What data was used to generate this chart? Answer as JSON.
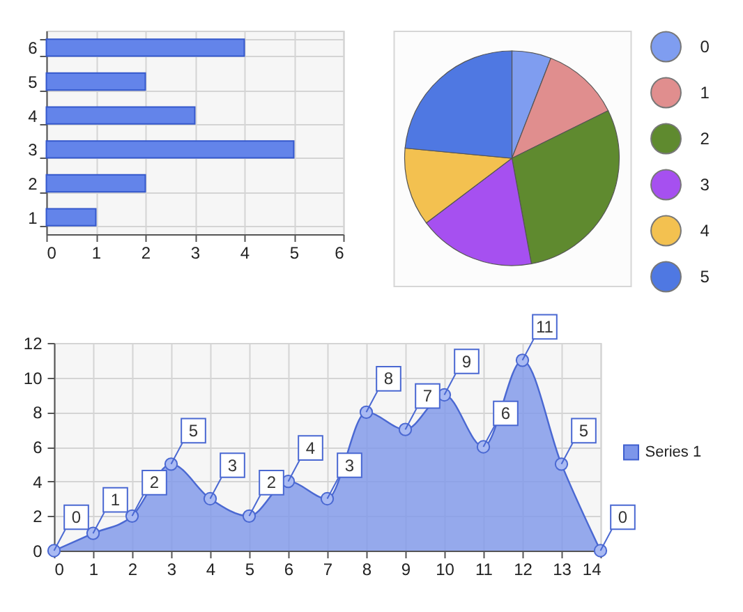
{
  "chart_data": [
    {
      "type": "bar",
      "orientation": "horizontal",
      "categories": [
        "6",
        "5",
        "4",
        "3",
        "2",
        "1"
      ],
      "values": [
        4,
        2,
        3,
        5,
        2,
        1
      ],
      "color": "#6384ea",
      "xlim": [
        0,
        6
      ],
      "xticks": [
        0,
        1,
        2,
        3,
        4,
        5,
        6
      ],
      "grid": true
    },
    {
      "type": "pie",
      "categories": [
        "0",
        "1",
        "2",
        "3",
        "4",
        "5"
      ],
      "values": [
        5.9,
        11.8,
        29.4,
        17.6,
        11.8,
        23.5
      ],
      "colors": [
        "#7f9df0",
        "#e08e8e",
        "#5f8a2f",
        "#a650f0",
        "#f3c150",
        "#4f78e2"
      ],
      "legend": "right"
    },
    {
      "type": "area",
      "x": [
        0,
        1,
        2,
        3,
        4,
        5,
        6,
        7,
        8,
        9,
        10,
        11,
        12,
        13,
        14
      ],
      "series": [
        {
          "name": "Series 1",
          "color": "#7d96ea",
          "values": [
            0,
            1,
            2,
            5,
            3,
            2,
            4,
            3,
            8,
            7,
            9,
            6,
            11,
            5,
            0
          ]
        }
      ],
      "xlim": [
        0,
        14
      ],
      "xticks": [
        0,
        1,
        2,
        3,
        4,
        5,
        6,
        7,
        8,
        9,
        10,
        11,
        12,
        13,
        14
      ],
      "ylim": [
        0,
        12
      ],
      "yticks": [
        0,
        2,
        4,
        6,
        8,
        10,
        12
      ],
      "grid": true,
      "marker": "circle",
      "data_labels": true,
      "legend": "right"
    }
  ]
}
